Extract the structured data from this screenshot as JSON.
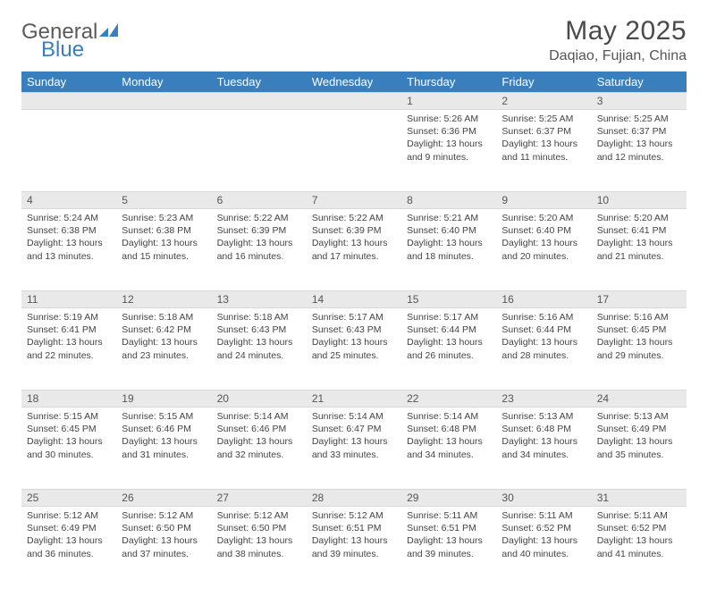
{
  "brand": {
    "part1": "General",
    "part2": "Blue"
  },
  "title": "May 2025",
  "location": "Daqiao, Fujian, China",
  "colors": {
    "header_bg": "#3a7fbd",
    "header_fg": "#ffffff",
    "daynum_bg": "#e9e9e9",
    "text": "#444444",
    "page_bg": "#ffffff"
  },
  "typography": {
    "title_fontsize": 30,
    "location_fontsize": 16,
    "weekday_fontsize": 13,
    "daynum_fontsize": 12,
    "cell_fontsize": 10.5
  },
  "day_labels": [
    "Sunday",
    "Monday",
    "Tuesday",
    "Wednesday",
    "Thursday",
    "Friday",
    "Saturday"
  ],
  "weeks": [
    [
      null,
      null,
      null,
      null,
      {
        "n": "1",
        "sr": "5:26 AM",
        "ss": "6:36 PM",
        "dl": "13 hours and 9 minutes."
      },
      {
        "n": "2",
        "sr": "5:25 AM",
        "ss": "6:37 PM",
        "dl": "13 hours and 11 minutes."
      },
      {
        "n": "3",
        "sr": "5:25 AM",
        "ss": "6:37 PM",
        "dl": "13 hours and 12 minutes."
      }
    ],
    [
      {
        "n": "4",
        "sr": "5:24 AM",
        "ss": "6:38 PM",
        "dl": "13 hours and 13 minutes."
      },
      {
        "n": "5",
        "sr": "5:23 AM",
        "ss": "6:38 PM",
        "dl": "13 hours and 15 minutes."
      },
      {
        "n": "6",
        "sr": "5:22 AM",
        "ss": "6:39 PM",
        "dl": "13 hours and 16 minutes."
      },
      {
        "n": "7",
        "sr": "5:22 AM",
        "ss": "6:39 PM",
        "dl": "13 hours and 17 minutes."
      },
      {
        "n": "8",
        "sr": "5:21 AM",
        "ss": "6:40 PM",
        "dl": "13 hours and 18 minutes."
      },
      {
        "n": "9",
        "sr": "5:20 AM",
        "ss": "6:40 PM",
        "dl": "13 hours and 20 minutes."
      },
      {
        "n": "10",
        "sr": "5:20 AM",
        "ss": "6:41 PM",
        "dl": "13 hours and 21 minutes."
      }
    ],
    [
      {
        "n": "11",
        "sr": "5:19 AM",
        "ss": "6:41 PM",
        "dl": "13 hours and 22 minutes."
      },
      {
        "n": "12",
        "sr": "5:18 AM",
        "ss": "6:42 PM",
        "dl": "13 hours and 23 minutes."
      },
      {
        "n": "13",
        "sr": "5:18 AM",
        "ss": "6:43 PM",
        "dl": "13 hours and 24 minutes."
      },
      {
        "n": "14",
        "sr": "5:17 AM",
        "ss": "6:43 PM",
        "dl": "13 hours and 25 minutes."
      },
      {
        "n": "15",
        "sr": "5:17 AM",
        "ss": "6:44 PM",
        "dl": "13 hours and 26 minutes."
      },
      {
        "n": "16",
        "sr": "5:16 AM",
        "ss": "6:44 PM",
        "dl": "13 hours and 28 minutes."
      },
      {
        "n": "17",
        "sr": "5:16 AM",
        "ss": "6:45 PM",
        "dl": "13 hours and 29 minutes."
      }
    ],
    [
      {
        "n": "18",
        "sr": "5:15 AM",
        "ss": "6:45 PM",
        "dl": "13 hours and 30 minutes."
      },
      {
        "n": "19",
        "sr": "5:15 AM",
        "ss": "6:46 PM",
        "dl": "13 hours and 31 minutes."
      },
      {
        "n": "20",
        "sr": "5:14 AM",
        "ss": "6:46 PM",
        "dl": "13 hours and 32 minutes."
      },
      {
        "n": "21",
        "sr": "5:14 AM",
        "ss": "6:47 PM",
        "dl": "13 hours and 33 minutes."
      },
      {
        "n": "22",
        "sr": "5:14 AM",
        "ss": "6:48 PM",
        "dl": "13 hours and 34 minutes."
      },
      {
        "n": "23",
        "sr": "5:13 AM",
        "ss": "6:48 PM",
        "dl": "13 hours and 34 minutes."
      },
      {
        "n": "24",
        "sr": "5:13 AM",
        "ss": "6:49 PM",
        "dl": "13 hours and 35 minutes."
      }
    ],
    [
      {
        "n": "25",
        "sr": "5:12 AM",
        "ss": "6:49 PM",
        "dl": "13 hours and 36 minutes."
      },
      {
        "n": "26",
        "sr": "5:12 AM",
        "ss": "6:50 PM",
        "dl": "13 hours and 37 minutes."
      },
      {
        "n": "27",
        "sr": "5:12 AM",
        "ss": "6:50 PM",
        "dl": "13 hours and 38 minutes."
      },
      {
        "n": "28",
        "sr": "5:12 AM",
        "ss": "6:51 PM",
        "dl": "13 hours and 39 minutes."
      },
      {
        "n": "29",
        "sr": "5:11 AM",
        "ss": "6:51 PM",
        "dl": "13 hours and 39 minutes."
      },
      {
        "n": "30",
        "sr": "5:11 AM",
        "ss": "6:52 PM",
        "dl": "13 hours and 40 minutes."
      },
      {
        "n": "31",
        "sr": "5:11 AM",
        "ss": "6:52 PM",
        "dl": "13 hours and 41 minutes."
      }
    ]
  ],
  "labels": {
    "sunrise": "Sunrise: ",
    "sunset": "Sunset: ",
    "daylight": "Daylight: "
  }
}
